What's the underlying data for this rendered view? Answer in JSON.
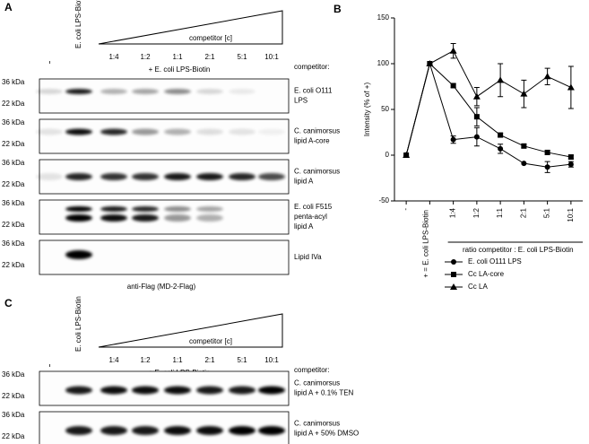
{
  "panel_labels": [
    "A",
    "B",
    "C"
  ],
  "blot_a": {
    "lane_header": "E. coli LPS-Biotin",
    "gradient_label": "competitor [c]",
    "lanes": [
      "1:4",
      "1:2",
      "1:1",
      "2:1",
      "5:1",
      "10:1"
    ],
    "plus_label": "+ E. coli LPS-Biotin",
    "competitor_label": "competitor:",
    "markers": [
      "36 kDa",
      "22 kDa"
    ],
    "rows": [
      {
        "label": [
          "E. coli O111",
          "LPS"
        ]
      },
      {
        "label": [
          "C. canimorsus",
          "lipid A-core"
        ]
      },
      {
        "label": [
          "C. canimorsus",
          "lipid A"
        ]
      },
      {
        "label": [
          "E. coli F515",
          "penta-acyl",
          "lipid A"
        ]
      },
      {
        "label": [
          "Lipid IVa"
        ]
      }
    ],
    "footer": "anti-Flag (MD-2-Flag)"
  },
  "blot_c": {
    "lane_header": "E. coli LPS-Biotin",
    "gradient_label": "competitor [c]",
    "lanes": [
      "1:4",
      "1:2",
      "1:1",
      "2:1",
      "5:1",
      "10:1"
    ],
    "plus_label": "+ E. coli LPS-Biotin",
    "competitor_label": "competitor:",
    "markers": [
      "36 kDa",
      "22 kDa"
    ],
    "rows": [
      {
        "label": [
          "C. canimorsus",
          "lipid A  + 0.1% TEN"
        ]
      },
      {
        "label": [
          "C. canimorsus",
          "lipid A + 50% DMSO"
        ]
      }
    ]
  },
  "chart_data": {
    "type": "line",
    "ylabel": "Intensity (% of +)",
    "xlabel": "ratio competitor : E. coli LPS-Biotin",
    "annotation": "+ = E. coli LPS-Biotin",
    "categories": [
      "-",
      null,
      "1:4",
      "1:2",
      "1:1",
      "2:1",
      "5:1",
      "10:1"
    ],
    "series": [
      {
        "name": "E. coli O111 LPS",
        "color": "#000000",
        "marker": "circle",
        "values": [
          0,
          100,
          17,
          20,
          7,
          -9,
          -13,
          -10
        ],
        "errors": [
          0,
          0,
          4,
          10,
          5,
          0,
          6,
          3
        ]
      },
      {
        "name": "Cc LA-core",
        "color": "#000000",
        "marker": "square",
        "values": [
          0,
          100,
          76,
          42,
          22,
          10,
          3,
          -2
        ],
        "errors": [
          0,
          0,
          2,
          10,
          2,
          2,
          2,
          2
        ]
      },
      {
        "name": "Cc LA",
        "color": "#000000",
        "marker": "triangle",
        "values": [
          0,
          100,
          114,
          64,
          82,
          67,
          86,
          74
        ],
        "errors": [
          0,
          0,
          8,
          10,
          18,
          15,
          9,
          23
        ]
      }
    ],
    "ylim": [
      -50,
      150
    ],
    "yticks": [
      -50,
      0,
      50,
      100,
      150
    ]
  }
}
